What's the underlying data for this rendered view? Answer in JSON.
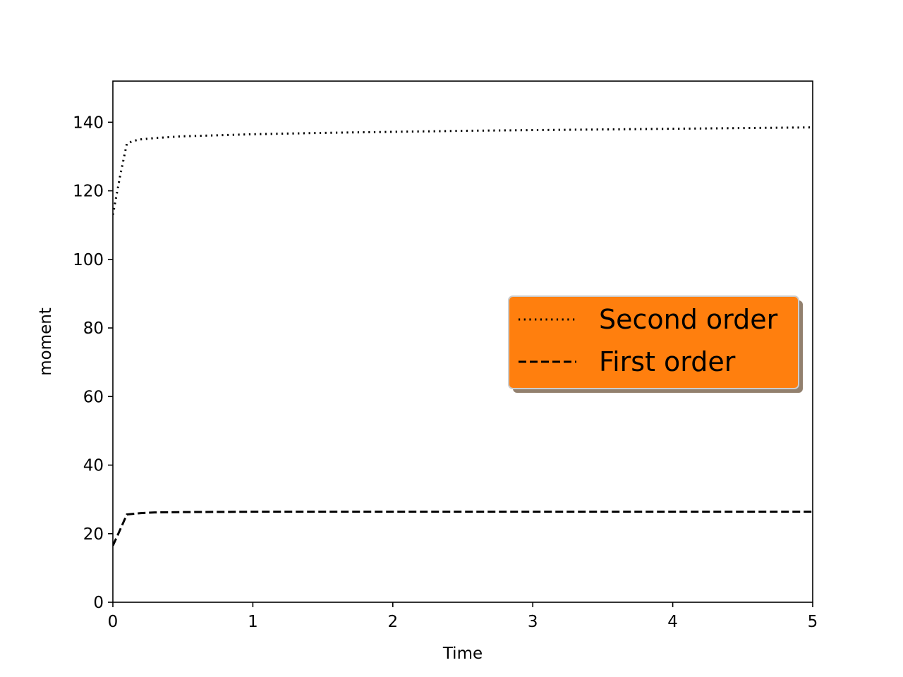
{
  "chart_data": {
    "type": "line",
    "xlabel": "Time",
    "ylabel": "moment",
    "xlim": [
      0,
      5
    ],
    "ylim": [
      0,
      152
    ],
    "xticks": [
      0,
      1,
      2,
      3,
      4,
      5
    ],
    "yticks": [
      0,
      20,
      40,
      60,
      80,
      100,
      120,
      140
    ],
    "grid": false,
    "legend": {
      "placement": "center-right",
      "background": "#ff7f0e",
      "shadow": true
    },
    "series": [
      {
        "name": "Second order",
        "style": "dotted",
        "color": "#000000",
        "x": [
          0,
          0.05,
          0.1,
          0.15,
          0.2,
          0.3,
          0.5,
          1,
          1.5,
          2,
          2.5,
          3,
          3.5,
          4,
          4.5,
          5
        ],
        "y": [
          113,
          124,
          133.8,
          134.6,
          135,
          135.4,
          135.9,
          136.5,
          136.9,
          137.2,
          137.5,
          137.7,
          137.9,
          138.1,
          138.3,
          138.5
        ]
      },
      {
        "name": "First order",
        "style": "dashed",
        "color": "#000000",
        "x": [
          0,
          0.05,
          0.1,
          0.2,
          0.3,
          0.5,
          1,
          2,
          3,
          4,
          5
        ],
        "y": [
          16.5,
          21,
          25.6,
          26.0,
          26.2,
          26.3,
          26.4,
          26.4,
          26.4,
          26.4,
          26.4
        ]
      }
    ]
  }
}
